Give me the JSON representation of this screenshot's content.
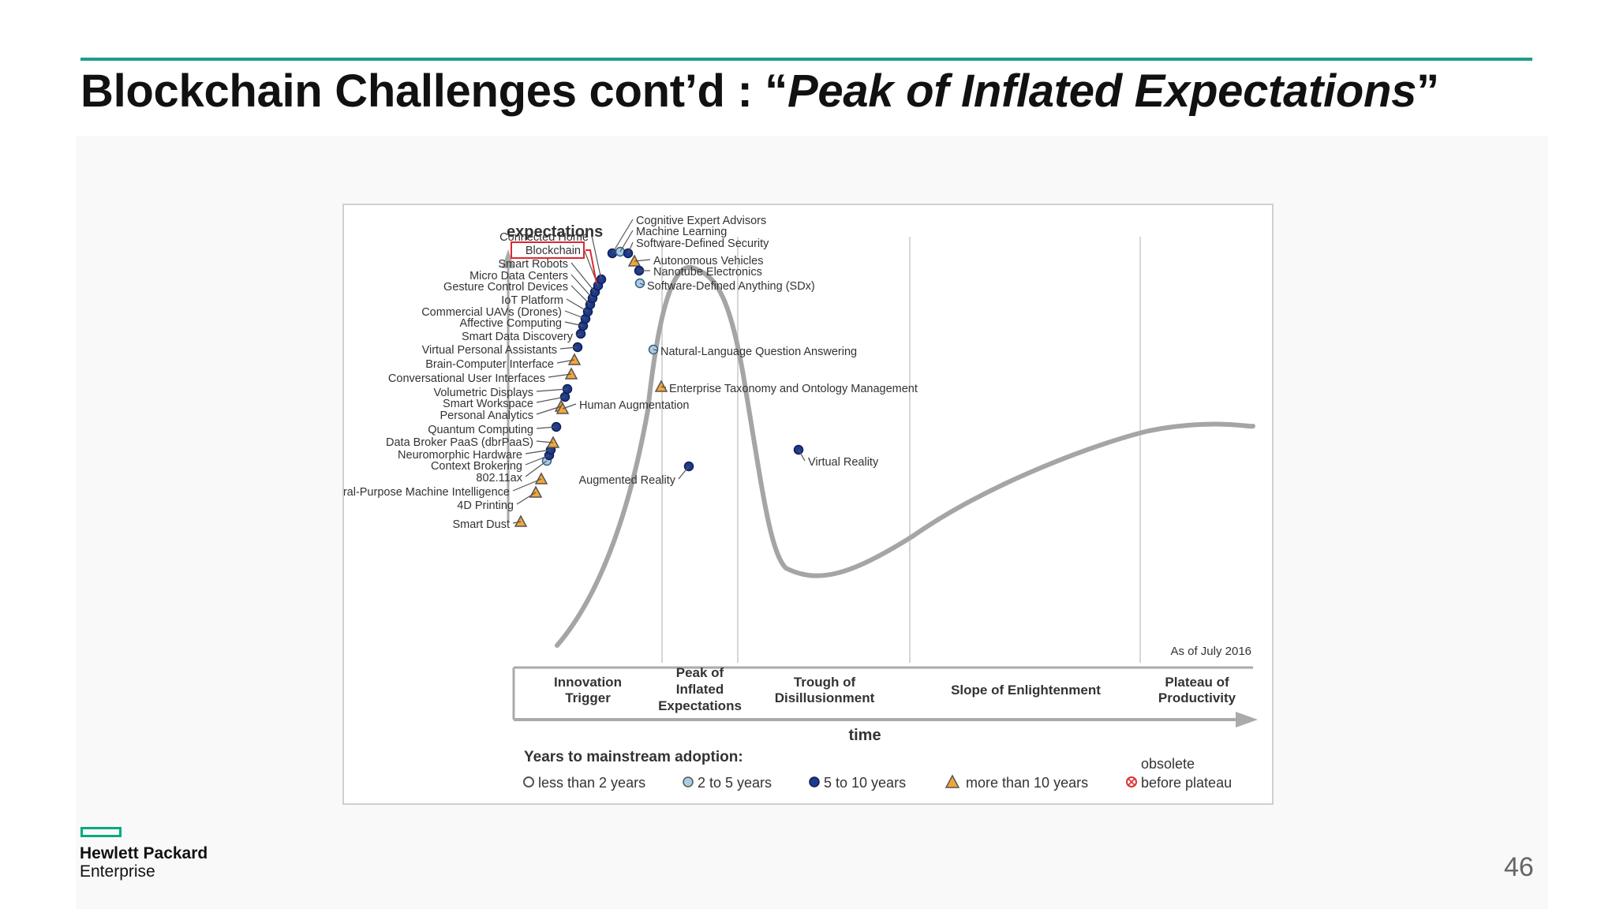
{
  "slide": {
    "title_prefix": "Blockchain Challenges cont’d : “",
    "title_italic": "Peak of Inflated Expectations",
    "title_suffix": "”",
    "page_number": "46"
  },
  "logo": {
    "line1": "Hewlett Packard",
    "line2": "Enterprise",
    "color": "#01a982"
  },
  "accent_color": "#1d9e88",
  "hype_cycle": {
    "y_axis_label": "expectations",
    "x_axis_label": "time",
    "as_of": "As of July 2016",
    "highlighted": "Blockchain",
    "phases": [
      {
        "line1": "Innovation",
        "line2": "Trigger",
        "line3": ""
      },
      {
        "line1": "Peak of",
        "line2": "Inflated",
        "line3": "Expectations"
      },
      {
        "line1": "Trough of",
        "line2": "Disillusionment",
        "line3": ""
      },
      {
        "line1": "Slope of Enlightenment",
        "line2": "",
        "line3": ""
      },
      {
        "line1": "Plateau of",
        "line2": "Productivity",
        "line3": ""
      }
    ],
    "legend": {
      "title": "Years to mainstream adoption:",
      "items": [
        {
          "symbol": "circle-open",
          "label": "less than 2 years"
        },
        {
          "symbol": "circle-light",
          "label": "2 to 5 years"
        },
        {
          "symbol": "circle-dark",
          "label": "5 to 10 years"
        },
        {
          "symbol": "triangle",
          "label": "more than 10 years"
        },
        {
          "symbol": "obsolete",
          "label_line1": "obsolete",
          "label_line2": "before plateau"
        }
      ]
    },
    "technologies": [
      {
        "name": "Smart Dust",
        "horizon": "more than 10 years"
      },
      {
        "name": "4D Printing",
        "horizon": "more than 10 years"
      },
      {
        "name": "General-Purpose Machine Intelligence",
        "horizon": "more than 10 years"
      },
      {
        "name": "802.11ax",
        "horizon": "2 to 5 years"
      },
      {
        "name": "Context Brokering",
        "horizon": "5 to 10 years"
      },
      {
        "name": "Neuromorphic Hardware",
        "horizon": "5 to 10 years"
      },
      {
        "name": "Data Broker PaaS (dbrPaaS)",
        "horizon": "more than 10 years"
      },
      {
        "name": "Quantum Computing",
        "horizon": "5 to 10 years"
      },
      {
        "name": "Personal Analytics",
        "horizon": "more than 10 years"
      },
      {
        "name": "Smart Workspace",
        "horizon": "5 to 10 years"
      },
      {
        "name": "Volumetric Displays",
        "horizon": "5 to 10 years"
      },
      {
        "name": "Conversational User Interfaces",
        "horizon": "more than 10 years"
      },
      {
        "name": "Brain-Computer Interface",
        "horizon": "more than 10 years"
      },
      {
        "name": "Virtual Personal Assistants",
        "horizon": "5 to 10 years"
      },
      {
        "name": "Smart Data Discovery",
        "horizon": "5 to 10 years"
      },
      {
        "name": "Affective Computing",
        "horizon": "5 to 10 years"
      },
      {
        "name": "Commercial UAVs (Drones)",
        "horizon": "5 to 10 years"
      },
      {
        "name": "IoT Platform",
        "horizon": "5 to 10 years"
      },
      {
        "name": "Gesture Control Devices",
        "horizon": "5 to 10 years"
      },
      {
        "name": "Micro Data Centers",
        "horizon": "5 to 10 years"
      },
      {
        "name": "Smart Robots",
        "horizon": "5 to 10 years"
      },
      {
        "name": "Blockchain",
        "horizon": "5 to 10 years"
      },
      {
        "name": "Connected Home",
        "horizon": "5 to 10 years"
      },
      {
        "name": "Human Augmentation",
        "horizon": "more than 10 years"
      },
      {
        "name": "Cognitive Expert Advisors",
        "horizon": "5 to 10 years"
      },
      {
        "name": "Machine Learning",
        "horizon": "2 to 5 years"
      },
      {
        "name": "Software-Defined Security",
        "horizon": "5 to 10 years"
      },
      {
        "name": "Autonomous Vehicles",
        "horizon": "more than 10 years"
      },
      {
        "name": "Nanotube Electronics",
        "horizon": "5 to 10 years"
      },
      {
        "name": "Software-Defined Anything (SDx)",
        "horizon": "2 to 5 years"
      },
      {
        "name": "Natural-Language Question Answering",
        "horizon": "2 to 5 years"
      },
      {
        "name": "Enterprise Taxonomy and Ontology Management",
        "horizon": "more than 10 years"
      },
      {
        "name": "Augmented Reality",
        "horizon": "5 to 10 years"
      },
      {
        "name": "Virtual Reality",
        "horizon": "5 to 10 years"
      }
    ]
  }
}
